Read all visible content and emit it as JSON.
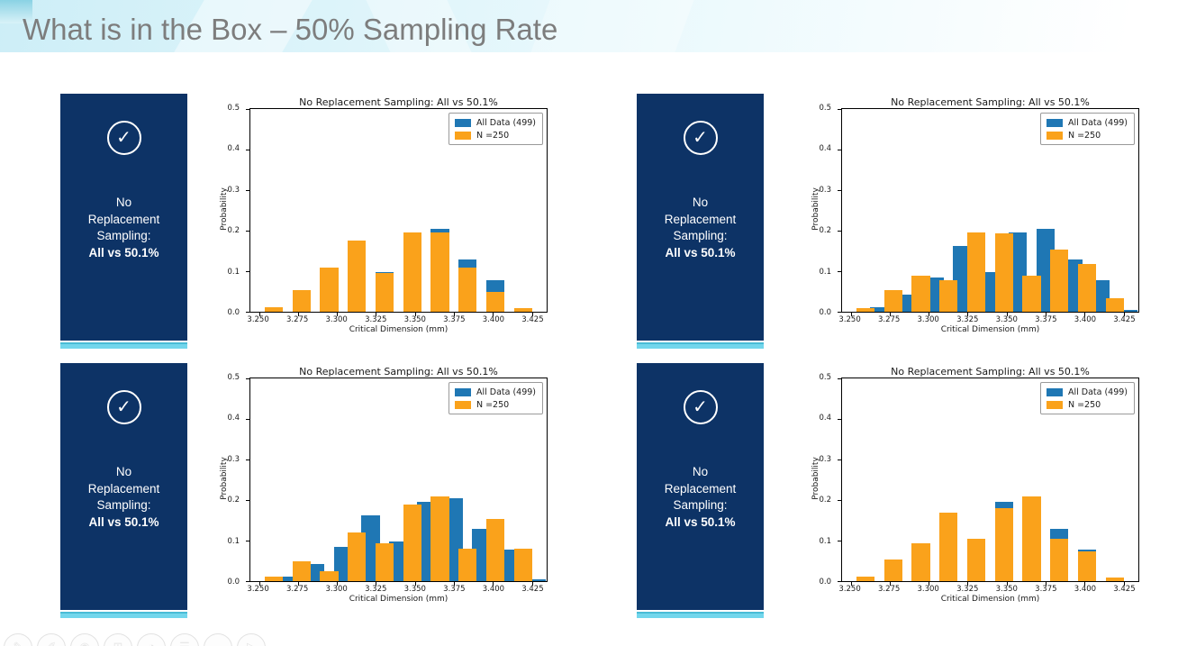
{
  "slide": {
    "title": "What is in the Box – 50% Sampling Rate"
  },
  "colors": {
    "card_navy": "#0d3366",
    "card_strip_cyan": "#72d6ec",
    "series_blue": "#1f77b4",
    "series_orange": "#faa21b",
    "title_gray": "#7d7d7d"
  },
  "cards": {
    "check_icon_glyph": "✓",
    "line1": "No",
    "line2": "Replacement",
    "line3": "Sampling:",
    "bold_line": "All vs 50.1%"
  },
  "chart_common": {
    "title": "No Replacement Sampling: All vs 50.1%",
    "xlabel": "Critical Dimension (mm)",
    "ylabel": "Probability",
    "legend": [
      "All Data (499)",
      "N =250"
    ],
    "xtick_values": [
      3.25,
      3.275,
      3.3,
      3.325,
      3.35,
      3.375,
      3.4,
      3.425
    ],
    "xtick_labels": [
      "3.250",
      "3.275",
      "3.300",
      "3.325",
      "3.350",
      "3.375",
      "3.400",
      "3.425"
    ],
    "ytick_values": [
      0.0,
      0.1,
      0.2,
      0.3,
      0.4,
      0.5
    ],
    "ytick_labels": [
      "0.0",
      "0.1",
      "0.2",
      "0.3",
      "0.4",
      "0.5"
    ]
  },
  "chart_data": [
    {
      "type": "bar",
      "title": "No Replacement Sampling: All vs 50.1%",
      "xlabel": "Critical Dimension (mm)",
      "ylabel": "Probability",
      "xlim": [
        3.2445,
        3.4345
      ],
      "ylim": [
        0,
        0.5
      ],
      "bin_centers": [
        3.2595,
        3.2773,
        3.295,
        3.3128,
        3.3305,
        3.3483,
        3.366,
        3.3838,
        3.4015,
        3.4193
      ],
      "bin_spacing": 0.017755,
      "blue_offset_fraction": 0,
      "legend_position": "upper right",
      "series": [
        {
          "name": "All Data (499)",
          "color": "#1f77b4",
          "values": [
            0.012,
            0.042,
            0.084,
            0.163,
            0.097,
            0.195,
            0.205,
            0.128,
            0.077,
            0.004
          ]
        },
        {
          "name": "N =250",
          "color": "#faa21b",
          "values": [
            0.012,
            0.053,
            0.108,
            0.176,
            0.096,
            0.196,
            0.196,
            0.108,
            0.05,
            0.008
          ]
        }
      ]
    },
    {
      "type": "bar",
      "title": "No Replacement Sampling: All vs 50.1%",
      "xlabel": "Critical Dimension (mm)",
      "ylabel": "Probability",
      "xlim": [
        3.2445,
        3.4345
      ],
      "ylim": [
        0,
        0.5
      ],
      "bin_centers": [
        3.2595,
        3.2773,
        3.295,
        3.3128,
        3.3305,
        3.3483,
        3.366,
        3.3838,
        3.4015,
        3.4193
      ],
      "bin_spacing": 0.017755,
      "blue_offset_fraction": 0.5,
      "legend_position": "upper right",
      "series": [
        {
          "name": "All Data (499)",
          "color": "#1f77b4",
          "values": [
            0.012,
            0.042,
            0.084,
            0.163,
            0.097,
            0.195,
            0.205,
            0.128,
            0.077,
            0.004
          ]
        },
        {
          "name": "N =250",
          "color": "#faa21b",
          "values": [
            0.01,
            0.053,
            0.088,
            0.077,
            0.196,
            0.193,
            0.089,
            0.154,
            0.117,
            0.033
          ]
        }
      ]
    },
    {
      "type": "bar",
      "title": "No Replacement Sampling: All vs 50.1%",
      "xlabel": "Critical Dimension (mm)",
      "ylabel": "Probability",
      "xlim": [
        3.2445,
        3.4345
      ],
      "ylim": [
        0,
        0.5
      ],
      "bin_centers": [
        3.2595,
        3.2773,
        3.295,
        3.3128,
        3.3305,
        3.3483,
        3.366,
        3.3838,
        3.4015,
        3.4193
      ],
      "bin_spacing": 0.017755,
      "blue_offset_fraction": 0.5,
      "legend_position": "upper right",
      "series": [
        {
          "name": "All Data (499)",
          "color": "#1f77b4",
          "values": [
            0.012,
            0.042,
            0.084,
            0.163,
            0.097,
            0.195,
            0.205,
            0.128,
            0.077,
            0.004
          ]
        },
        {
          "name": "N =250",
          "color": "#faa21b",
          "values": [
            0.012,
            0.048,
            0.025,
            0.121,
            0.093,
            0.189,
            0.209,
            0.08,
            0.154,
            0.08
          ]
        }
      ]
    },
    {
      "type": "bar",
      "title": "No Replacement Sampling: All vs 50.1%",
      "xlabel": "Critical Dimension (mm)",
      "ylabel": "Probability",
      "xlim": [
        3.2445,
        3.4345
      ],
      "ylim": [
        0,
        0.5
      ],
      "bin_centers": [
        3.2595,
        3.2773,
        3.295,
        3.3128,
        3.3305,
        3.3483,
        3.366,
        3.3838,
        3.4015,
        3.4193
      ],
      "bin_spacing": 0.017755,
      "blue_offset_fraction": 0,
      "legend_position": "upper right",
      "series": [
        {
          "name": "All Data (499)",
          "color": "#1f77b4",
          "values": [
            0.012,
            0.042,
            0.084,
            0.163,
            0.097,
            0.195,
            0.205,
            0.128,
            0.077,
            0.004
          ]
        },
        {
          "name": "N =250",
          "color": "#faa21b",
          "values": [
            0.012,
            0.053,
            0.093,
            0.168,
            0.105,
            0.181,
            0.209,
            0.105,
            0.073,
            0.008
          ]
        }
      ]
    }
  ],
  "toolbar": {
    "icons": [
      {
        "name": "pen-icon",
        "glyph": "✎"
      },
      {
        "name": "highlighter-icon",
        "glyph": "✐"
      },
      {
        "name": "laser-pointer-icon",
        "glyph": "◉"
      },
      {
        "name": "all-slides-icon",
        "glyph": "⊞"
      },
      {
        "name": "zoom-icon",
        "glyph": "◔"
      },
      {
        "name": "captions-icon",
        "glyph": "☰"
      },
      {
        "name": "more-options-icon",
        "glyph": "⋯"
      },
      {
        "name": "next-slide-icon",
        "glyph": "▷"
      }
    ]
  }
}
